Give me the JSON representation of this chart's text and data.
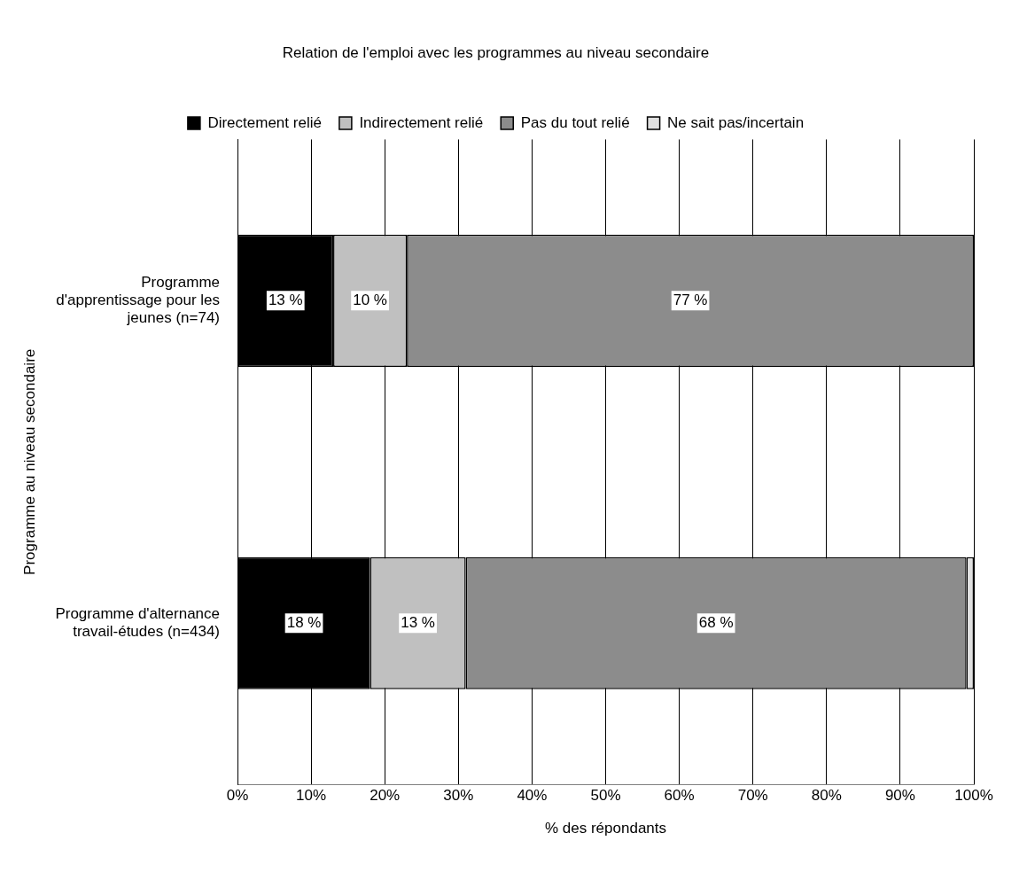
{
  "chart_data": {
    "type": "bar",
    "orientation": "horizontal",
    "stacked": true,
    "title": "Relation de l'emploi avec les programmes au niveau secondaire",
    "xlabel": "% des répondants",
    "ylabel": "Programme au niveau secondaire",
    "categories": [
      "Programme d'apprentissage pour les jeunes (n=74)",
      "Programme d'alternance travail-études (n=434)"
    ],
    "series": [
      {
        "name": "Directement relié",
        "color": "#000000",
        "values": [
          13,
          18
        ],
        "value_labels": [
          "13 %",
          "18 %"
        ]
      },
      {
        "name": "Indirectement relié",
        "color": "#c0c0c0",
        "values": [
          10,
          13
        ],
        "value_labels": [
          "10 %",
          "13 %"
        ]
      },
      {
        "name": "Pas du tout relié",
        "color": "#8c8c8c",
        "values": [
          77,
          68
        ],
        "value_labels": [
          "77 %",
          "68 %"
        ]
      },
      {
        "name": "Ne sait pas/incertain",
        "color": "#e0e0e0",
        "values": [
          null,
          1
        ],
        "value_labels": [
          null,
          null
        ]
      }
    ],
    "xlim": [
      0,
      100
    ],
    "xticks": [
      {
        "value": 0,
        "label": "0%"
      },
      {
        "value": 10,
        "label": "10%"
      },
      {
        "value": 20,
        "label": "20%"
      },
      {
        "value": 30,
        "label": "30%"
      },
      {
        "value": 40,
        "label": "40%"
      },
      {
        "value": 50,
        "label": "50%"
      },
      {
        "value": 60,
        "label": "60%"
      },
      {
        "value": 70,
        "label": "70%"
      },
      {
        "value": 80,
        "label": "80%"
      },
      {
        "value": 90,
        "label": "90%"
      },
      {
        "value": 100,
        "label": "100%"
      }
    ],
    "grid": "x",
    "legend": "top"
  }
}
